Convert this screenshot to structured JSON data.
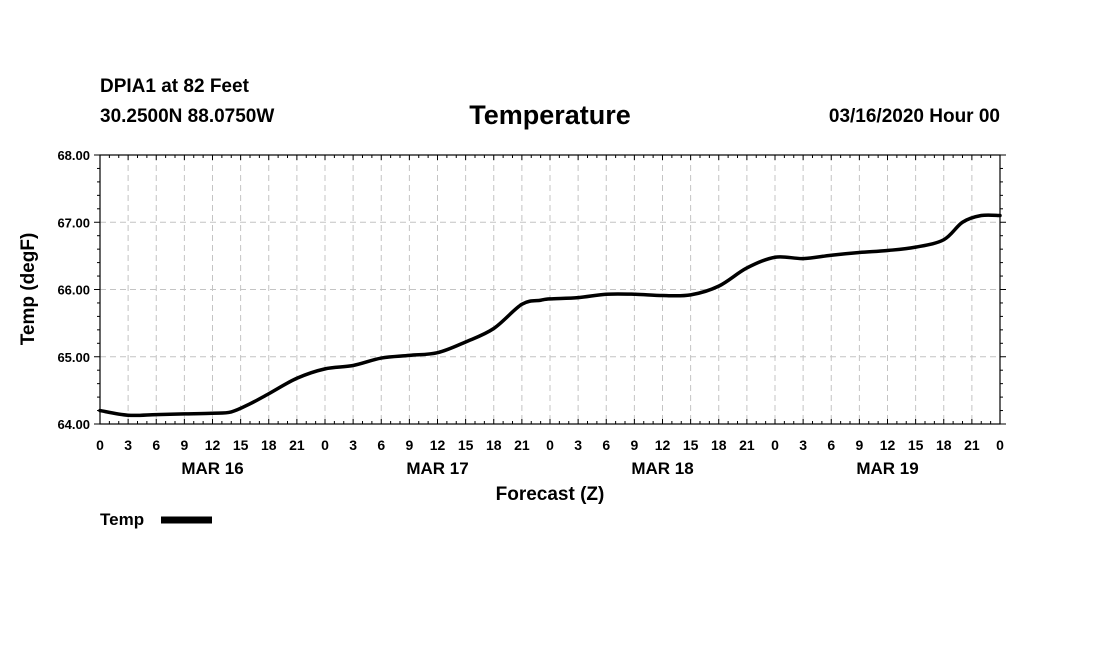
{
  "header": {
    "station": "DPIA1 at 82 Feet",
    "coords": "30.2500N 88.0750W",
    "title": "Temperature",
    "run": "03/16/2020 Hour 00"
  },
  "chart_data": {
    "type": "line",
    "title": "Temperature",
    "xlabel": "Forecast (Z)",
    "ylabel": "Temp (degF)",
    "ylim": [
      64.0,
      68.0
    ],
    "yticks": [
      "64.00",
      "65.00",
      "66.00",
      "67.00",
      "68.00"
    ],
    "xlim_hours": [
      0,
      96
    ],
    "xtick_labels": [
      "0",
      "3",
      "6",
      "9",
      "12",
      "15",
      "18",
      "21",
      "0",
      "3",
      "6",
      "9",
      "12",
      "15",
      "18",
      "21",
      "0",
      "3",
      "6",
      "9",
      "12",
      "15",
      "18",
      "21",
      "0",
      "3",
      "6",
      "9",
      "12",
      "15",
      "18",
      "21",
      "0"
    ],
    "date_labels": [
      "MAR 16",
      "MAR 17",
      "MAR 18",
      "MAR 19"
    ],
    "grid": true,
    "legend_position": "bottom-left",
    "series": [
      {
        "name": "Temp",
        "color": "#000000",
        "x": [
          0,
          3,
          6,
          9,
          12,
          14,
          16,
          18,
          21,
          24,
          27,
          30,
          33,
          36,
          39,
          42,
          45,
          47,
          48,
          51,
          54,
          57,
          60,
          63,
          66,
          69,
          72,
          75,
          78,
          81,
          84,
          87,
          90,
          92,
          94,
          96
        ],
        "y": [
          64.2,
          64.13,
          64.14,
          64.15,
          64.16,
          64.18,
          64.3,
          64.45,
          64.68,
          64.82,
          64.87,
          64.98,
          65.02,
          65.06,
          65.22,
          65.42,
          65.78,
          65.84,
          65.86,
          65.88,
          65.93,
          65.93,
          65.91,
          65.92,
          66.05,
          66.32,
          66.48,
          66.46,
          66.51,
          66.55,
          66.58,
          66.63,
          66.74,
          67.0,
          67.1,
          67.1
        ]
      }
    ]
  }
}
